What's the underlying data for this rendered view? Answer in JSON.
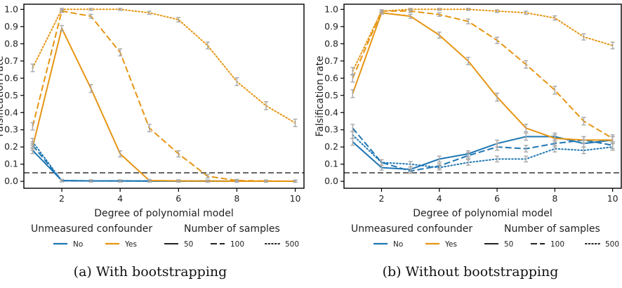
{
  "chart_data": [
    {
      "type": "line",
      "caption": "(a) With bootstrapping",
      "xlabel": "Degree of polynomial model",
      "ylabel": "Falsification rate",
      "xlim": [
        0.7,
        10.3
      ],
      "ylim": [
        -0.04,
        1.03
      ],
      "xticks": [
        "2",
        "4",
        "6",
        "8",
        "10"
      ],
      "yticks": [
        "0.0",
        "0.1",
        "0.2",
        "0.3",
        "0.4",
        "0.5",
        "0.6",
        "0.7",
        "0.8",
        "0.9",
        "1.0"
      ],
      "reference_line": 0.05,
      "x": [
        1,
        2,
        3,
        4,
        5,
        6,
        7,
        8,
        9,
        10
      ],
      "series": [
        {
          "confounder": "No",
          "samples": "50",
          "color": "#1f77b4",
          "dash": "solid",
          "values": [
            0.18,
            0.005,
            0.003,
            0.003,
            0.002,
            0.002,
            0.002,
            0.001,
            0.001,
            0.001
          ]
        },
        {
          "confounder": "No",
          "samples": "100",
          "color": "#1f77b4",
          "dash": "dashed",
          "values": [
            0.21,
            0.004,
            0.003,
            0.002,
            0.002,
            0.002,
            0.001,
            0.001,
            0.001,
            0.001
          ]
        },
        {
          "confounder": "No",
          "samples": "500",
          "color": "#1f77b4",
          "dash": "dotted",
          "values": [
            0.23,
            0.003,
            0.002,
            0.002,
            0.002,
            0.002,
            0.002,
            0.001,
            0.001,
            0.001
          ]
        },
        {
          "confounder": "Yes",
          "samples": "50",
          "color": "#e69512",
          "dash": "solid",
          "values": [
            0.2,
            0.89,
            0.54,
            0.16,
            0.005,
            0.003,
            0.002,
            0.001,
            0.001,
            0.001
          ]
        },
        {
          "confounder": "Yes",
          "samples": "100",
          "color": "#e69512",
          "dash": "dashed",
          "values": [
            0.32,
            0.99,
            0.96,
            0.75,
            0.31,
            0.16,
            0.03,
            0.005,
            0.002,
            0.001
          ]
        },
        {
          "confounder": "Yes",
          "samples": "500",
          "color": "#e69512",
          "dash": "dotted",
          "values": [
            0.66,
            1.0,
            1.0,
            1.0,
            0.98,
            0.94,
            0.79,
            0.58,
            0.44,
            0.34
          ]
        }
      ]
    },
    {
      "type": "line",
      "caption": "(b) Without bootstrapping",
      "xlabel": "Degree of polynomial model",
      "ylabel": "Falsification rate",
      "xlim": [
        0.7,
        10.3
      ],
      "ylim": [
        -0.04,
        1.03
      ],
      "xticks": [
        "2",
        "4",
        "6",
        "8",
        "10"
      ],
      "yticks": [
        "0.0",
        "0.1",
        "0.2",
        "0.3",
        "0.4",
        "0.5",
        "0.6",
        "0.7",
        "0.8",
        "0.9",
        "1.0"
      ],
      "reference_line": 0.05,
      "x": [
        1,
        2,
        3,
        4,
        5,
        6,
        7,
        8,
        9,
        10
      ],
      "series": [
        {
          "confounder": "No",
          "samples": "50",
          "color": "#1f77b4",
          "dash": "solid",
          "values": [
            0.23,
            0.08,
            0.07,
            0.13,
            0.16,
            0.22,
            0.26,
            0.26,
            0.22,
            0.24
          ]
        },
        {
          "confounder": "No",
          "samples": "100",
          "color": "#1f77b4",
          "dash": "dashed",
          "values": [
            0.31,
            0.11,
            0.06,
            0.09,
            0.15,
            0.2,
            0.19,
            0.22,
            0.24,
            0.21
          ]
        },
        {
          "confounder": "No",
          "samples": "500",
          "color": "#1f77b4",
          "dash": "dotted",
          "values": [
            0.27,
            0.11,
            0.1,
            0.08,
            0.11,
            0.13,
            0.13,
            0.19,
            0.18,
            0.2
          ]
        },
        {
          "confounder": "Yes",
          "samples": "50",
          "color": "#e69512",
          "dash": "solid",
          "values": [
            0.51,
            0.98,
            0.96,
            0.85,
            0.7,
            0.49,
            0.31,
            0.25,
            0.24,
            0.24
          ]
        },
        {
          "confounder": "Yes",
          "samples": "100",
          "color": "#e69512",
          "dash": "dashed",
          "values": [
            0.6,
            0.99,
            0.99,
            0.97,
            0.93,
            0.82,
            0.68,
            0.53,
            0.35,
            0.25
          ]
        },
        {
          "confounder": "Yes",
          "samples": "500",
          "color": "#e69512",
          "dash": "dotted",
          "values": [
            0.64,
            0.99,
            1.0,
            1.0,
            1.0,
            0.99,
            0.98,
            0.95,
            0.84,
            0.79
          ]
        }
      ]
    }
  ],
  "legend": {
    "confounder_title": "Unmeasured confounder",
    "confounder_items": [
      {
        "label": "No",
        "color": "#1f77b4"
      },
      {
        "label": "Yes",
        "color": "#e69512"
      }
    ],
    "samples_title": "Number of samples",
    "samples_items": [
      {
        "label": "50",
        "dash": "solid"
      },
      {
        "label": "100",
        "dash": "dashed"
      },
      {
        "label": "500",
        "dash": "dotted"
      }
    ]
  }
}
